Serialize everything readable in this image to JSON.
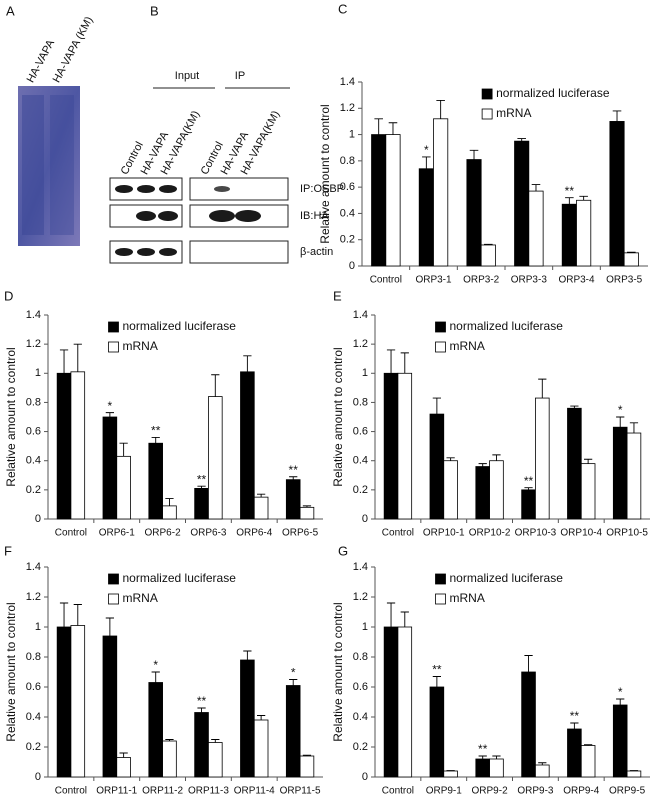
{
  "panel_a": {
    "label": "A",
    "lanes": [
      "HA-VAPA",
      "HA-VAPA (KM)"
    ]
  },
  "panel_b": {
    "label": "B",
    "groups": [
      "Input",
      "IP"
    ],
    "lanes": [
      "Control",
      "HA-VAPA",
      "HA-VAPA(KM)",
      "Control",
      "HA-VAPA",
      "HA-VAPA(KM)"
    ],
    "rows": [
      "IP:OSBP",
      "IB:HA",
      "β-actin"
    ]
  },
  "chart_data": [
    {
      "type": "bar",
      "panel": "C",
      "ylabel": "Relative amount to control",
      "legend": "upper center",
      "ylim": [
        0,
        1.4
      ],
      "yticks": [
        0,
        0.2,
        0.4,
        0.6,
        0.8,
        1,
        1.2,
        1.4
      ],
      "categories": [
        "Control",
        "ORP3-1",
        "ORP3-2",
        "ORP3-3",
        "ORP3-4",
        "ORP3-5"
      ],
      "series": [
        {
          "name": "normalized luciferase",
          "color": "#000000",
          "values": [
            1.0,
            0.74,
            0.81,
            0.95,
            0.47,
            1.1
          ],
          "errors": [
            0.12,
            0.09,
            0.07,
            0.02,
            0.05,
            0.08
          ],
          "significance": [
            null,
            "*",
            null,
            null,
            "**",
            null
          ]
        },
        {
          "name": "mRNA",
          "color": "#ffffff",
          "values": [
            1.0,
            1.12,
            0.16,
            0.57,
            0.5,
            0.1
          ],
          "errors": [
            0.09,
            0.14,
            0.005,
            0.05,
            0.03,
            0.005
          ]
        }
      ]
    },
    {
      "type": "bar",
      "panel": "D",
      "ylabel": "Relative amount to control",
      "legend": "upper left",
      "ylim": [
        0,
        1.4
      ],
      "yticks": [
        0,
        0.2,
        0.4,
        0.6,
        0.8,
        1,
        1.2,
        1.4
      ],
      "categories": [
        "Control",
        "ORP6-1",
        "ORP6-2",
        "ORP6-3",
        "ORP6-4",
        "ORP6-5"
      ],
      "series": [
        {
          "name": "normalized luciferase",
          "color": "#000000",
          "values": [
            1.0,
            0.7,
            0.52,
            0.21,
            1.01,
            0.27
          ],
          "errors": [
            0.16,
            0.03,
            0.04,
            0.015,
            0.11,
            0.02
          ],
          "significance": [
            null,
            "*",
            "**",
            "**",
            null,
            "**"
          ]
        },
        {
          "name": "mRNA",
          "color": "#ffffff",
          "values": [
            1.01,
            0.43,
            0.09,
            0.84,
            0.15,
            0.08
          ],
          "errors": [
            0.19,
            0.09,
            0.05,
            0.15,
            0.02,
            0.01
          ]
        }
      ]
    },
    {
      "type": "bar",
      "panel": "E",
      "ylabel": "Relative amount to control",
      "legend": "upper left",
      "ylim": [
        0,
        1.4
      ],
      "yticks": [
        0,
        0.2,
        0.4,
        0.6,
        0.8,
        1,
        1.2,
        1.4
      ],
      "categories": [
        "Control",
        "ORP10-1",
        "ORP10-2",
        "ORP10-3",
        "ORP10-4",
        "ORP10-5"
      ],
      "series": [
        {
          "name": "normalized luciferase",
          "color": "#000000",
          "values": [
            1.0,
            0.72,
            0.36,
            0.2,
            0.76,
            0.63
          ],
          "errors": [
            0.16,
            0.11,
            0.02,
            0.015,
            0.015,
            0.07
          ],
          "significance": [
            null,
            null,
            null,
            "**",
            null,
            "*"
          ]
        },
        {
          "name": "mRNA",
          "color": "#ffffff",
          "values": [
            1.0,
            0.4,
            0.4,
            0.83,
            0.38,
            0.59
          ],
          "errors": [
            0.14,
            0.02,
            0.04,
            0.13,
            0.03,
            0.07
          ]
        }
      ]
    },
    {
      "type": "bar",
      "panel": "F",
      "ylabel": "Relative amount to control",
      "legend": "upper left",
      "ylim": [
        0,
        1.4
      ],
      "yticks": [
        0,
        0.2,
        0.4,
        0.6,
        0.8,
        1,
        1.2,
        1.4
      ],
      "categories": [
        "Control",
        "ORP11-1",
        "ORP11-2",
        "ORP11-3",
        "ORP11-4",
        "ORP11-5"
      ],
      "series": [
        {
          "name": "normalized luciferase",
          "color": "#000000",
          "values": [
            1.0,
            0.94,
            0.63,
            0.43,
            0.78,
            0.61
          ],
          "errors": [
            0.16,
            0.12,
            0.07,
            0.03,
            0.06,
            0.04
          ],
          "significance": [
            null,
            null,
            "*",
            "**",
            null,
            "*"
          ]
        },
        {
          "name": "mRNA",
          "color": "#ffffff",
          "values": [
            1.01,
            0.13,
            0.24,
            0.23,
            0.38,
            0.14
          ],
          "errors": [
            0.14,
            0.03,
            0.01,
            0.02,
            0.03,
            0.005
          ]
        }
      ]
    },
    {
      "type": "bar",
      "panel": "G",
      "ylabel": "Relative amount to control",
      "legend": "upper left",
      "ylim": [
        0,
        1.4
      ],
      "yticks": [
        0,
        0.2,
        0.4,
        0.6,
        0.8,
        1,
        1.2,
        1.4
      ],
      "categories": [
        "Control",
        "ORP9-1",
        "ORP9-2",
        "ORP9-3",
        "ORP9-4",
        "ORP9-5"
      ],
      "series": [
        {
          "name": "normalized luciferase",
          "color": "#000000",
          "values": [
            1.0,
            0.6,
            0.12,
            0.7,
            0.32,
            0.48
          ],
          "errors": [
            0.16,
            0.07,
            0.02,
            0.11,
            0.04,
            0.04
          ],
          "significance": [
            null,
            "**",
            "**",
            null,
            "**",
            "*"
          ]
        },
        {
          "name": "mRNA",
          "color": "#ffffff",
          "values": [
            1.0,
            0.04,
            0.12,
            0.08,
            0.21,
            0.04
          ],
          "errors": [
            0.1,
            0.003,
            0.02,
            0.015,
            0.005,
            0.003
          ]
        }
      ]
    }
  ]
}
